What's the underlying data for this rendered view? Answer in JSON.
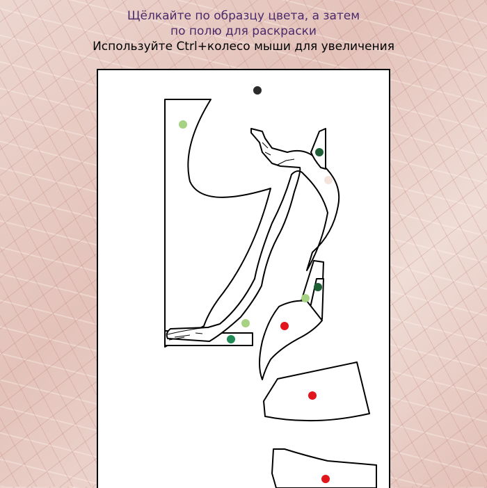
{
  "instructions": {
    "line1": "Щёлкайте по образцу цвета, а затем",
    "line2": "по полю для раскраски",
    "line3": "Используйте Ctrl+колесо мыши для увеличения"
  },
  "colors": {
    "dark_gray": "#2b2b2b",
    "light_green": "#a8d283",
    "dark_green": "#1f5f36",
    "pale_peach": "#f4e3da",
    "teal_green": "#1f8a55",
    "red": "#e0161c"
  },
  "swatches": [
    {
      "name": "swatch-dark-gray",
      "color": "#2b2b2b"
    },
    {
      "name": "swatch-light-green-top",
      "color": "#a8d283"
    },
    {
      "name": "swatch-dark-green-top",
      "color": "#1f5f36"
    },
    {
      "name": "swatch-pale-peach",
      "color": "#f4e3da"
    },
    {
      "name": "swatch-dark-green-mid",
      "color": "#1f5f36"
    },
    {
      "name": "swatch-light-green-mid",
      "color": "#a8d283"
    },
    {
      "name": "swatch-light-green-low",
      "color": "#a8d283"
    },
    {
      "name": "swatch-red-mid",
      "color": "#e0161c"
    },
    {
      "name": "swatch-teal-green",
      "color": "#1f8a55"
    },
    {
      "name": "swatch-red-low",
      "color": "#e0161c"
    },
    {
      "name": "swatch-red-bottom",
      "color": "#e0161c"
    }
  ]
}
